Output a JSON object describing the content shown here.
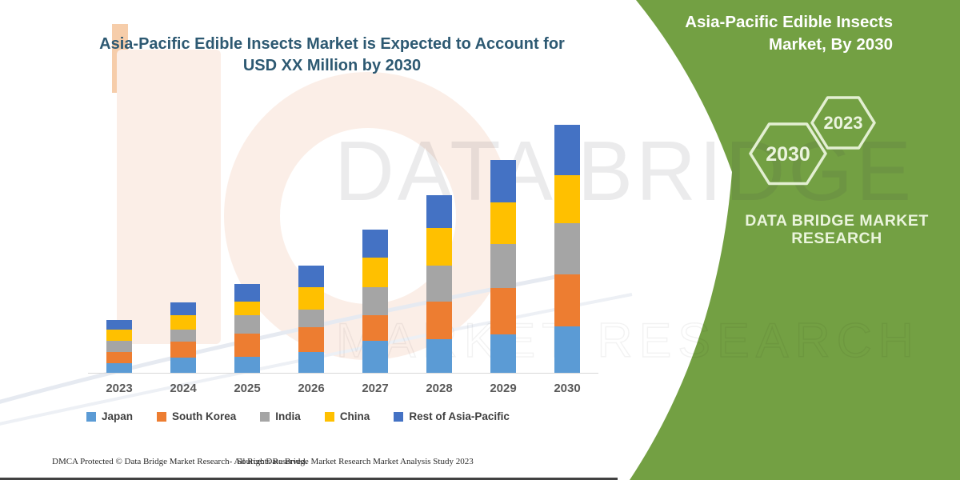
{
  "chart": {
    "title_line1": "Asia-Pacific Edible Insects Market is Expected to Account for",
    "title_line2": "USD XX Million by 2030"
  },
  "chart_data": {
    "type": "bar",
    "stacked": true,
    "title": "Asia-Pacific Edible Insects Market is Expected to Account for USD XX Million by 2030",
    "categories": [
      "2023",
      "2024",
      "2025",
      "2026",
      "2027",
      "2028",
      "2029",
      "2030"
    ],
    "series": [
      {
        "name": "Japan",
        "color": "#5B9BD5",
        "values": [
          12,
          19,
          20,
          26,
          40,
          42,
          48,
          58
        ]
      },
      {
        "name": "South Korea",
        "color": "#ED7D31",
        "values": [
          14,
          20,
          29,
          31,
          32,
          47,
          58,
          65
        ]
      },
      {
        "name": "India",
        "color": "#A5A5A5",
        "values": [
          14,
          15,
          23,
          22,
          35,
          45,
          55,
          64
        ]
      },
      {
        "name": "China",
        "color": "#FFC000",
        "values": [
          14,
          18,
          17,
          28,
          37,
          47,
          52,
          60
        ]
      },
      {
        "name": "Rest of Asia-Pacific",
        "color": "#4472C4",
        "values": [
          12,
          16,
          22,
          27,
          35,
          41,
          53,
          63
        ]
      }
    ],
    "xlabel": "",
    "ylabel": "",
    "units": "relative heights (actual values shown as USD XX Million)",
    "value_axis_visible": false,
    "grid": false,
    "legend_position": "bottom"
  },
  "side_panel": {
    "panel_color": "#73A043",
    "title_line1": "Asia-Pacific Edible Insects",
    "title_line2": "Market, By 2030",
    "hexagons": [
      {
        "label": "2030"
      },
      {
        "label": "2023"
      }
    ],
    "brand_line1": "DATA BRIDGE MARKET",
    "brand_line2": "RESEARCH"
  },
  "watermark": {
    "row1": "DATA BRIDGE",
    "row2": "MARKET RESEARCH"
  },
  "footer": {
    "dmca": "DMCA Protected © Data Bridge Market Research- All Rights Reserved.",
    "source": "Source: Data Bridge Market Research Market Analysis Study 2023"
  }
}
